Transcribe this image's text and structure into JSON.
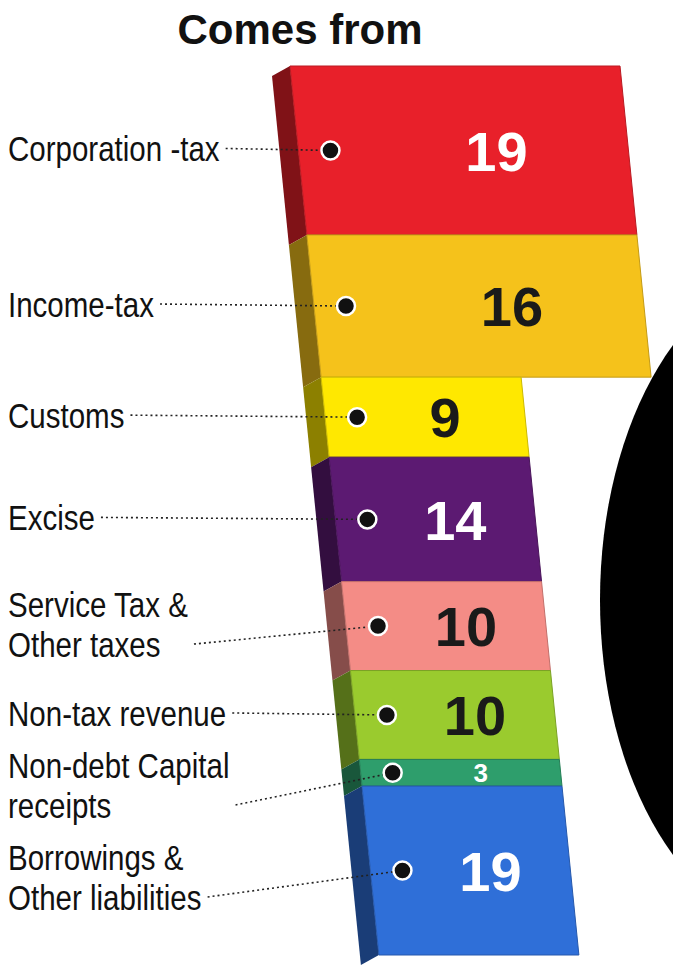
{
  "chart_data": {
    "type": "bar",
    "title": "Comes from",
    "categories": [
      "Corporation -tax",
      "Income-tax",
      "Customs",
      "Excise",
      "Service Tax & Other taxes",
      "Non-tax revenue",
      "Non-debt Capital receipts",
      "Borrowings & Other liabilities"
    ],
    "values": [
      19,
      16,
      9,
      14,
      10,
      10,
      3,
      19
    ],
    "colors": [
      "#e8202a",
      "#f5c21b",
      "#ffe800",
      "#5c1a72",
      "#f48c86",
      "#9acb2e",
      "#2e9e6c",
      "#2f6fd8"
    ],
    "ylim": [
      0,
      100
    ],
    "stacked": true,
    "data_labels": true,
    "tick_labels": false
  }
}
